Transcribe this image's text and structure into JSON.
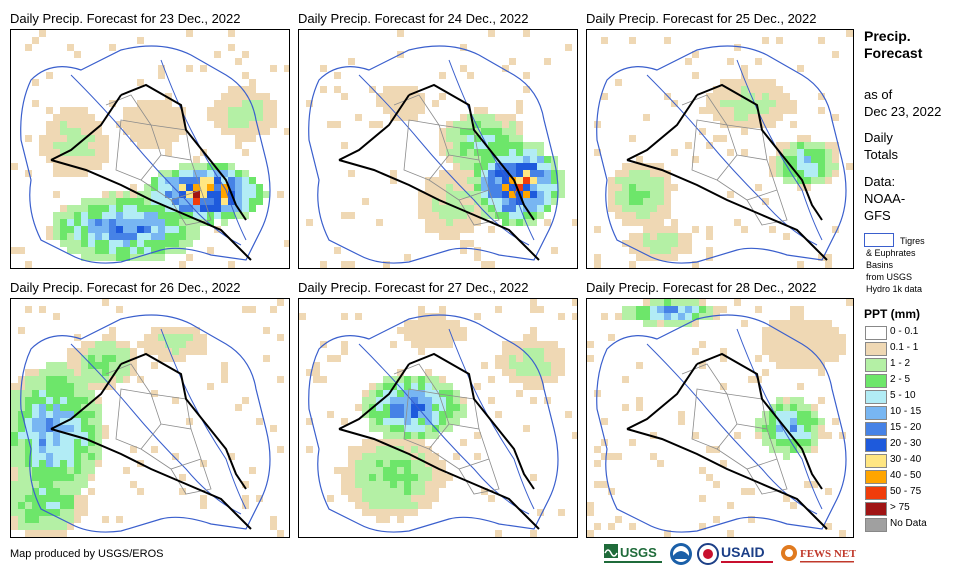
{
  "panels": [
    {
      "title": "Daily Precip. Forecast for 23 Dec., 2022"
    },
    {
      "title": "Daily Precip. Forecast for 24 Dec., 2022"
    },
    {
      "title": "Daily Precip. Forecast for 25 Dec., 2022"
    },
    {
      "title": "Daily Precip. Forecast for 26 Dec., 2022"
    },
    {
      "title": "Daily Precip. Forecast for 27 Dec., 2022"
    },
    {
      "title": "Daily Precip. Forecast for 28 Dec., 2022"
    }
  ],
  "sidebar": {
    "title_line1": "Precip.",
    "title_line2": "Forecast",
    "asof_line1": "as of",
    "asof_line2": "Dec 23, 2022",
    "totals_line1": "Daily",
    "totals_line2": "Totals",
    "data_line1": "Data:",
    "data_line2": "NOAA-",
    "data_line3": "GFS"
  },
  "basin_legend": {
    "line1": "Tigres",
    "line2": "& Euphrates",
    "line3": "Basins",
    "line4": "from USGS",
    "line5": "Hydro 1k data",
    "color": "#3a5fcd"
  },
  "ppt_legend": {
    "title": "PPT (mm)",
    "classes": [
      {
        "label": "0 - 0.1",
        "color": "#ffffff"
      },
      {
        "label": "0.1 - 1",
        "color": "#efd8b4"
      },
      {
        "label": "1 - 2",
        "color": "#b4f0a5"
      },
      {
        "label": "2 - 5",
        "color": "#6de66a"
      },
      {
        "label": "5 - 10",
        "color": "#b2ecf5"
      },
      {
        "label": "10 - 15",
        "color": "#78b6f2"
      },
      {
        "label": "15 - 20",
        "color": "#4682e6"
      },
      {
        "label": "20 - 30",
        "color": "#1e5adc"
      },
      {
        "label": "30 - 40",
        "color": "#ffe682"
      },
      {
        "label": "40 - 50",
        "color": "#ffa500"
      },
      {
        "label": "50 - 75",
        "color": "#f03c0a"
      },
      {
        "label": "> 75",
        "color": "#a01414"
      },
      {
        "label": "No Data",
        "color": "#a0a0a0"
      }
    ]
  },
  "footer": {
    "credit": "Map produced by USGS/EROS",
    "logo_usgs": "USGS",
    "logo_usaid": "USAID",
    "logo_fewsnet": "FEWS NET"
  }
}
